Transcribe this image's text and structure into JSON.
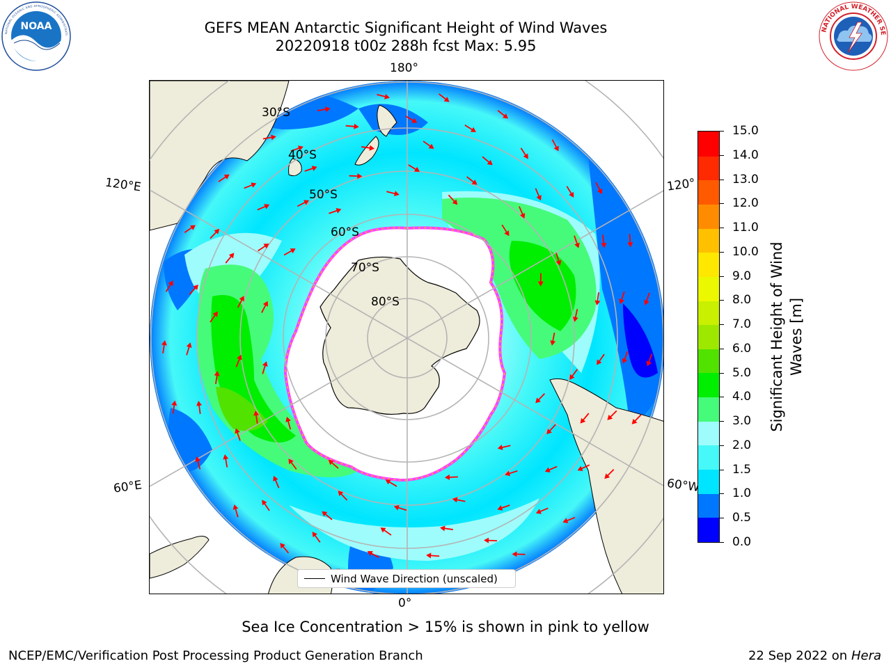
{
  "header": {
    "title_line1": "GEFS MEAN Antarctic Significant Height of Wind Waves",
    "title_line2": "20220918 t00z 288h fcst   Max: 5.95"
  },
  "logos": {
    "noaa": {
      "text": "NOAA",
      "ring_text": "NATIONAL OCEANIC AND ATMOSPHERIC ADMINISTRATION · U.S. DEPARTMENT OF COMMERCE"
    },
    "nws": {
      "ring_text": "NATIONAL WEATHER SERVICE"
    }
  },
  "map": {
    "longitude_labels": {
      "top": "180°",
      "bottom": "0°",
      "upper_left": "120°E",
      "upper_right": "120°",
      "lower_left": "60°E",
      "lower_right": "60°W"
    },
    "latitude_labels": [
      "30°S",
      "40°S",
      "50°S",
      "60°S",
      "70°S",
      "80°S"
    ],
    "legend_label": "Wind Wave Direction (unscaled)",
    "colors": {
      "land": "#eeecda",
      "ice_edge": "#ff40ff",
      "ice_fringe": "#ffb020",
      "arrow": "#ff0000",
      "grid": "#b4b4b4"
    }
  },
  "colorbar": {
    "title": "Significant Height of Wind Waves [m]",
    "title_lines": [
      "Significant Height of Wind",
      "Waves [m]"
    ],
    "ticks": [
      "0.0",
      "0.5",
      "1.0",
      "1.5",
      "2.0",
      "3.0",
      "4.0",
      "5.0",
      "6.0",
      "7.0",
      "8.0",
      "9.0",
      "10.0",
      "11.0",
      "12.0",
      "13.0",
      "14.0",
      "15.0"
    ],
    "colors": [
      "#0000ff",
      "#0077ff",
      "#00e5ff",
      "#46f8f8",
      "#9efcfc",
      "#46fb7a",
      "#00ee00",
      "#52e200",
      "#9ee800",
      "#c8f000",
      "#ecf800",
      "#ffe800",
      "#ffc000",
      "#ff8c00",
      "#ff5a00",
      "#ff2a00",
      "#ff0000"
    ]
  },
  "subtitle": "Sea Ice Concentration > 15% is shown in pink to yellow",
  "footer": {
    "left": "NCEP/EMC/Verification Post Processing Product Generation Branch",
    "date": "22 Sep 2022 on",
    "host": "Hera"
  }
}
